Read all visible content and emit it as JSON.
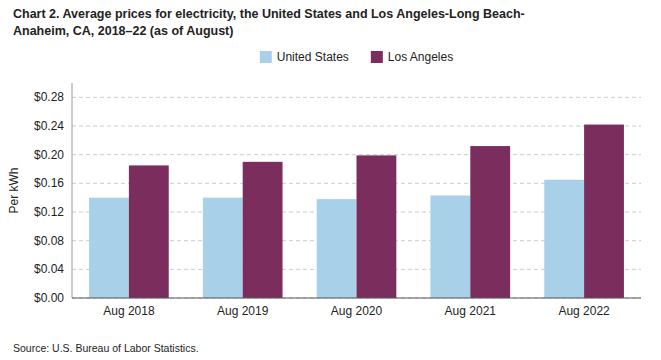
{
  "chart_data": {
    "type": "bar",
    "title": "Chart 2. Average prices for electricity, the United States and Los Angeles-Long Beach-\nAnaheim, CA, 2018–22 (as of August)",
    "y_label": "Per kWh",
    "annotations": [
      "Source: U.S. Bureau of Labor Statistics."
    ],
    "categories": [
      "Aug 2018",
      "Aug 2019",
      "Aug 2020",
      "Aug 2021",
      "Aug 2022"
    ],
    "series": [
      {
        "name": "United States",
        "color": "#a8d0e8",
        "values": [
          0.14,
          0.14,
          0.138,
          0.143,
          0.165
        ]
      },
      {
        "name": "Los Angeles",
        "color": "#7b2d5e",
        "values": [
          0.185,
          0.19,
          0.199,
          0.212,
          0.242
        ]
      }
    ],
    "ylim": [
      0.0,
      0.3
    ],
    "yticks": [
      {
        "value": 0.0,
        "label": "$0.00"
      },
      {
        "value": 0.04,
        "label": "$0.04"
      },
      {
        "value": 0.08,
        "label": "$0.08"
      },
      {
        "value": 0.12,
        "label": "$0.12"
      },
      {
        "value": 0.16,
        "label": "$0.16"
      },
      {
        "value": 0.2,
        "label": "$0.20"
      },
      {
        "value": 0.24,
        "label": "$0.24"
      },
      {
        "value": 0.28,
        "label": "$0.28"
      }
    ],
    "grid": true,
    "legend": "top"
  }
}
